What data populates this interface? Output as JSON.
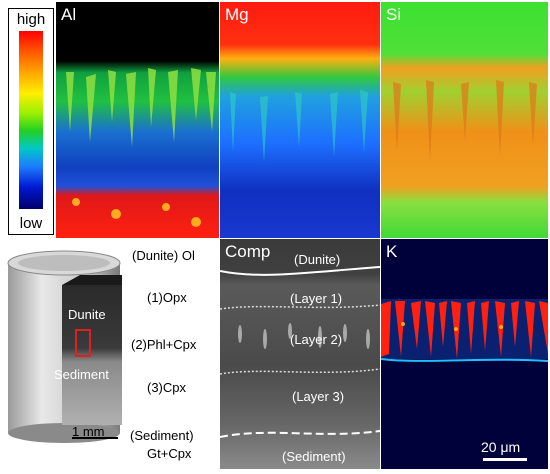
{
  "colorscale": {
    "high_label": "high",
    "low_label": "low"
  },
  "maps": {
    "al": {
      "label": "Al"
    },
    "mg": {
      "label": "Mg"
    },
    "si": {
      "label": "Si"
    },
    "k": {
      "label": "K"
    },
    "comp": {
      "label": "Comp"
    }
  },
  "schematic": {
    "dunite_label": "Dunite",
    "sediment_label": "Sediment",
    "scale_label": "1 mm"
  },
  "phase_labels": {
    "dunite": "(Dunite) Ol",
    "layer1": "(1)Opx",
    "layer2": "(2)Phl+Cpx",
    "layer3": "(3)Cpx",
    "sediment_line1": "(Sediment)",
    "sediment_line2": "Gt+Cpx"
  },
  "comp_labels": {
    "dunite": "(Dunite)",
    "layer1": "(Layer 1)",
    "layer2": "(Layer 2)",
    "layer3": "(Layer 3)",
    "sediment": "(Sediment)"
  },
  "k_scale_label": "20 μm",
  "colors": {
    "hot": "#ff1a1a",
    "mid": "#22d022",
    "cool": "#1e50ff",
    "deep": "#00006a"
  }
}
